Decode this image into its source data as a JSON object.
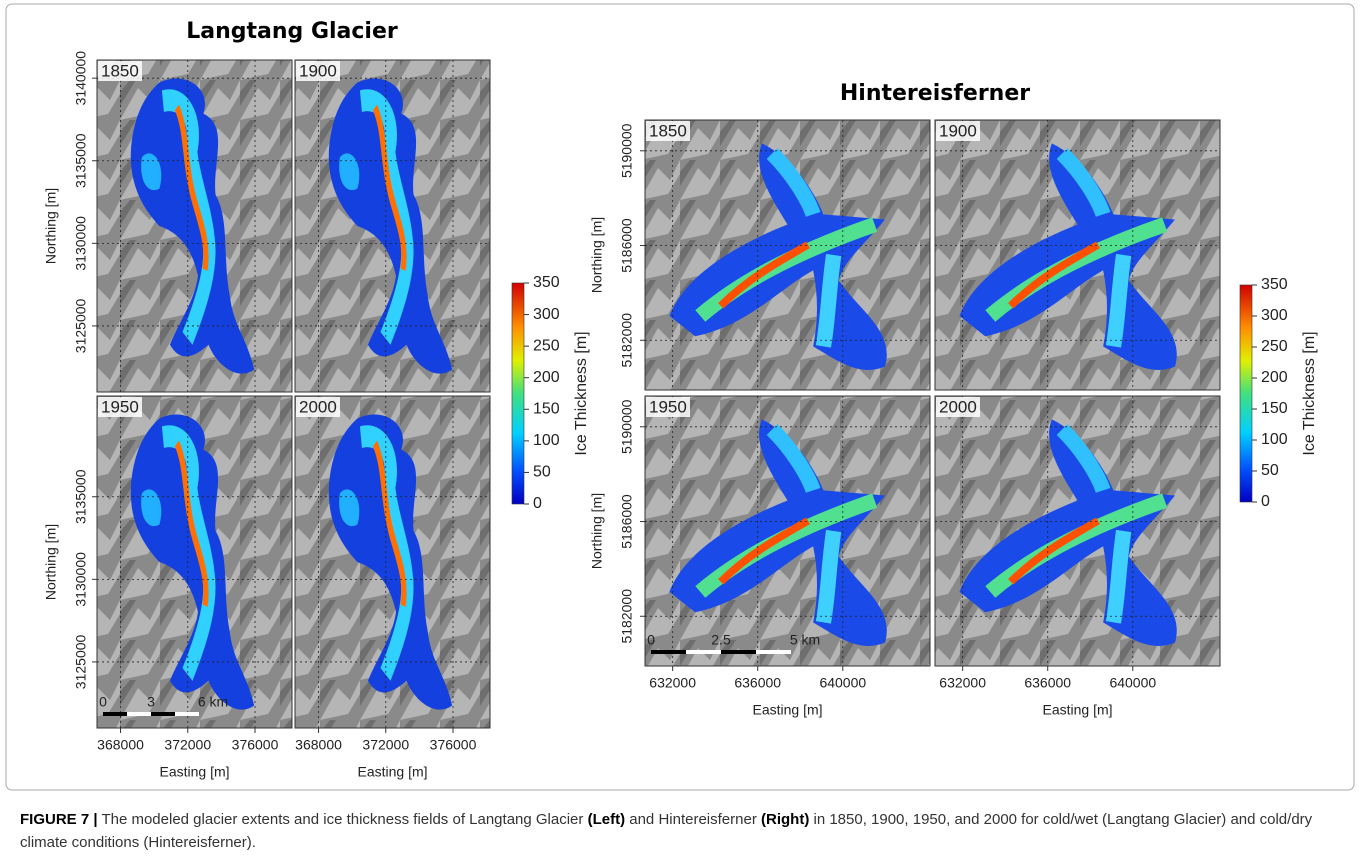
{
  "left": {
    "title": "Langtang Glacier",
    "panels": [
      "1850",
      "1900",
      "1950",
      "2000"
    ],
    "ylabel": "Northing [m]",
    "xlabel": "Easting [m]",
    "xticks": [
      368000,
      372000,
      376000
    ],
    "rows_yticks": [
      [
        3140000,
        3135000,
        3130000,
        3125000
      ],
      [
        3135000,
        3130000,
        3125000
      ]
    ],
    "xlim": [
      366600,
      378200
    ],
    "ylim": [
      3121000,
      3141100
    ],
    "scale_bar": [
      "0",
      "3",
      "6 km"
    ],
    "colorbar": {
      "label": "Ice Thickness [m]",
      "lim": [
        0,
        350
      ],
      "ticks": [
        0,
        50,
        100,
        150,
        200,
        250,
        300,
        350
      ]
    }
  },
  "right": {
    "title": "Hintereisferner",
    "panels": [
      "1850",
      "1900",
      "1950",
      "2000"
    ],
    "ylabel": "Northing [m]",
    "xlabel": "Easting [m]",
    "xticks": [
      632000,
      636000,
      640000
    ],
    "rows_yticks": [
      [
        5190000,
        5186000,
        5182000
      ],
      [
        5190000,
        5186000,
        5182000
      ]
    ],
    "xlim": [
      630700,
      644100
    ],
    "ylim": [
      5179900,
      5191300
    ],
    "scale_bar": [
      "0",
      "2.5",
      "5 km"
    ],
    "colorbar": {
      "label": "Ice Thickness [m]",
      "lim": [
        0,
        350
      ],
      "ticks": [
        0,
        50,
        100,
        150,
        200,
        250,
        300,
        350
      ]
    }
  },
  "caption": {
    "label": "FIGURE 7 |",
    "parts": [
      {
        "text": "The modeled glacier extents and ice thickness fields of Langtang Glacier",
        "bold": false
      },
      {
        "text": "(Left)",
        "bold": true
      },
      {
        "text": "and Hintereisferner",
        "bold": false
      },
      {
        "text": "(Right)",
        "bold": true
      },
      {
        "text": "in 1850, 1900, 1950, and 2000 for cold/wet (Langtang Glacier) and cold/dry climate conditions (Hintereisferner).",
        "bold": false
      }
    ]
  }
}
